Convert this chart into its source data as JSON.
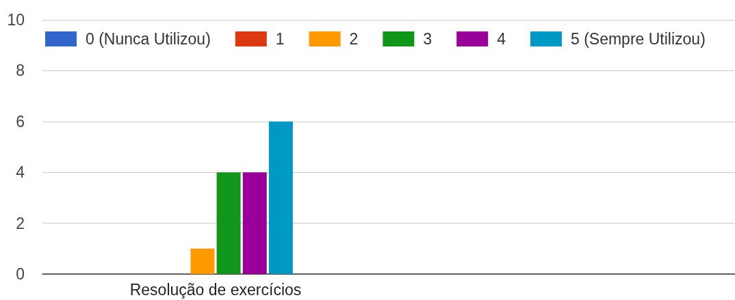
{
  "chart_data": {
    "type": "bar",
    "categories": [
      "Resolução de exercícios",
      null
    ],
    "series": [
      {
        "name": "0 (Nunca Utilizou)",
        "color": "#3366cc",
        "values": [
          0,
          null
        ]
      },
      {
        "name": "1",
        "color": "#dc3912",
        "values": [
          0,
          null
        ]
      },
      {
        "name": "2",
        "color": "#ff9900",
        "values": [
          1,
          null
        ]
      },
      {
        "name": "3",
        "color": "#109618",
        "values": [
          4,
          null
        ]
      },
      {
        "name": "4",
        "color": "#990099",
        "values": [
          4,
          null
        ]
      },
      {
        "name": "5 (Sempre Utilizou)",
        "color": "#0099c6",
        "values": [
          6,
          null
        ]
      }
    ],
    "ylim": [
      0,
      10
    ],
    "yticks": [
      0,
      2,
      4,
      6,
      8,
      10
    ],
    "grid": "y",
    "legend": "top"
  }
}
